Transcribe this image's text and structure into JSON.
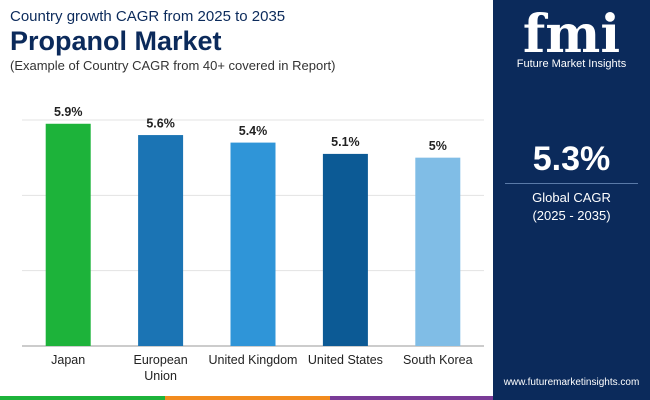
{
  "chart_data": {
    "type": "bar",
    "kicker": "Country growth CAGR from 2025 to 2035",
    "title": "Propanol Market",
    "subtitle": "(Example of Country CAGR from 40+ covered in Report)",
    "categories": [
      "Japan",
      "European Union",
      "United Kingdom",
      "United States",
      "South Korea"
    ],
    "values": [
      5.9,
      5.6,
      5.4,
      5.1,
      5
    ],
    "value_labels": [
      "5.9%",
      "5.6%",
      "5.4%",
      "5.1%",
      "5%"
    ],
    "colors": [
      "#1db33a",
      "#1b74b4",
      "#2f95d8",
      "#0c5a95",
      "#80bde6"
    ],
    "ylim": [
      0,
      6
    ],
    "yticks": [
      0,
      2,
      4,
      6
    ],
    "grid": true
  },
  "sidebar": {
    "logo": "fmi",
    "brand": "Future Market Insights",
    "stat": "5.3%",
    "stat_label": "Global CAGR",
    "period": "(2025 - 2035)",
    "url": "www.futuremarketinsights.com"
  }
}
